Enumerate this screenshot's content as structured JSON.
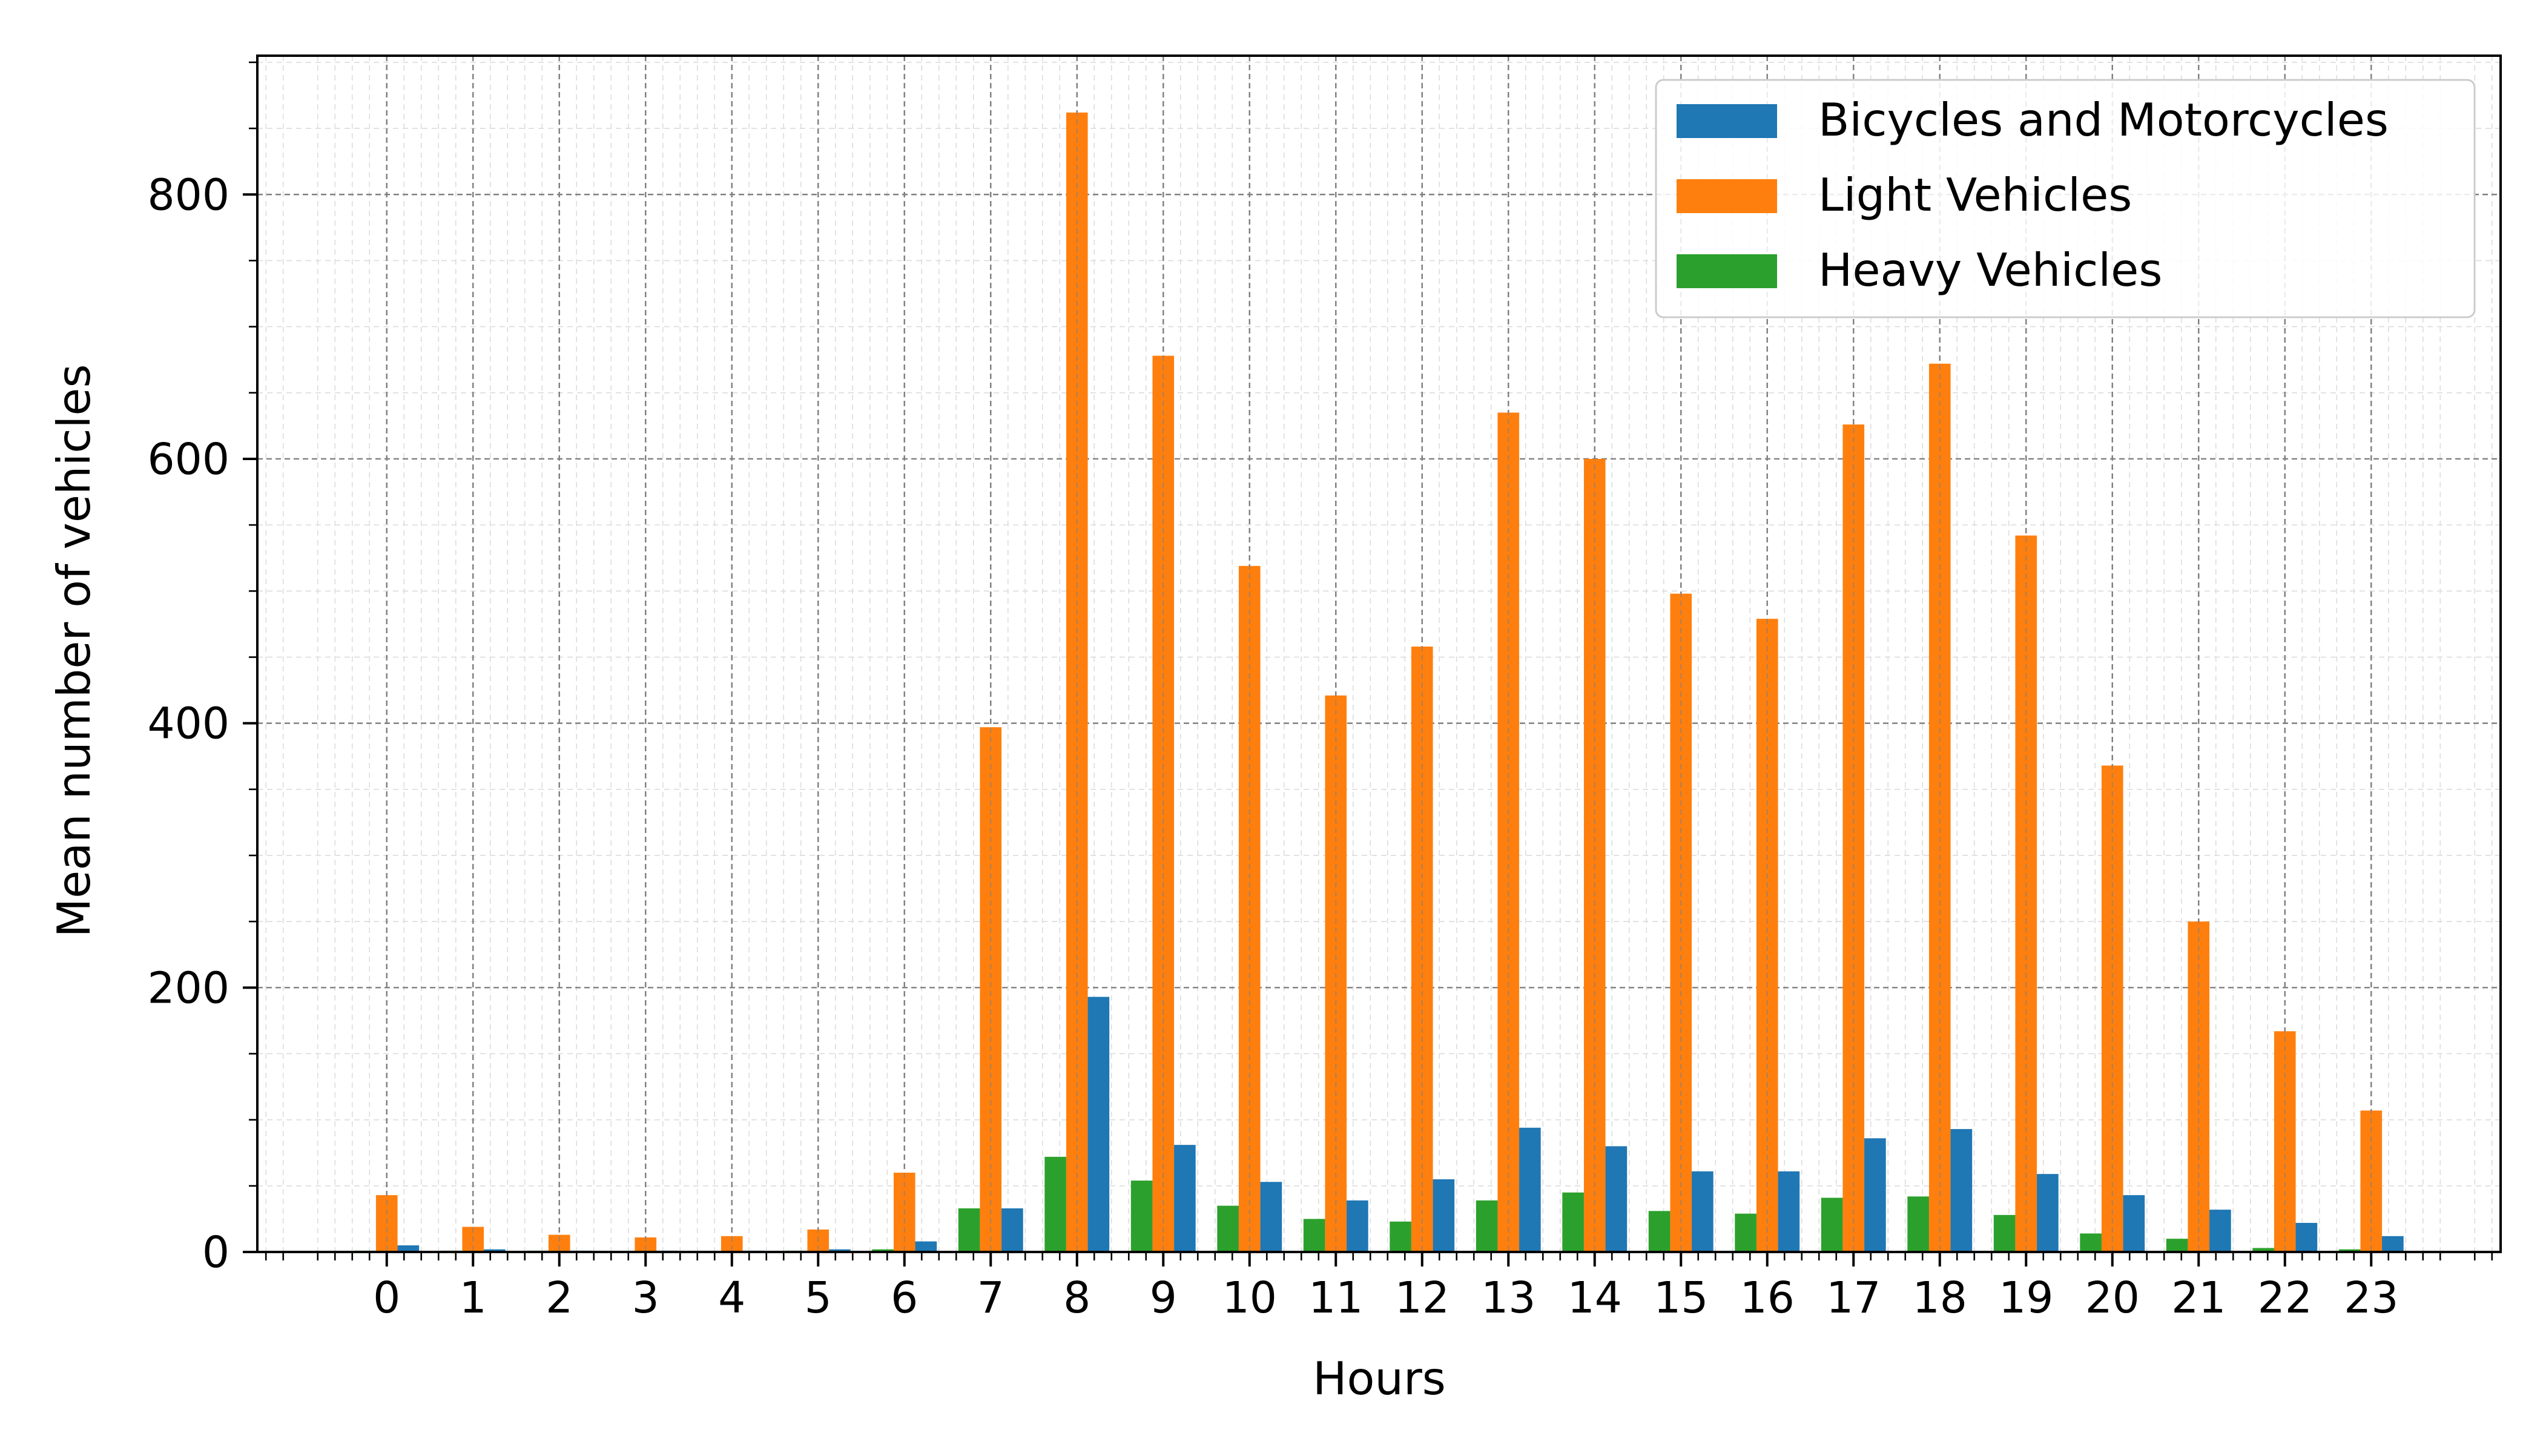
{
  "chart_data": {
    "type": "bar",
    "title": "",
    "xlabel": "Hours",
    "ylabel": "Mean number of vehicles",
    "categories": [
      "0",
      "1",
      "2",
      "3",
      "4",
      "5",
      "6",
      "7",
      "8",
      "9",
      "10",
      "11",
      "12",
      "13",
      "14",
      "15",
      "16",
      "17",
      "18",
      "19",
      "20",
      "21",
      "22",
      "23"
    ],
    "xlim": [
      -1.5,
      24.5
    ],
    "ylim": [
      0,
      905
    ],
    "yticks": [
      0,
      200,
      400,
      600,
      800
    ],
    "grid": true,
    "minor_grid": true,
    "legend_position": "top-right",
    "series": [
      {
        "name": "Heavy Vehicles",
        "color": "#2ca02c",
        "offset": -0.25,
        "values": [
          1,
          1,
          1,
          0,
          0,
          1,
          2,
          33,
          72,
          54,
          35,
          25,
          23,
          39,
          45,
          31,
          29,
          41,
          42,
          28,
          14,
          10,
          3,
          2
        ]
      },
      {
        "name": "Light Vehicles",
        "color": "#ff7f0e",
        "offset": 0,
        "values": [
          43,
          19,
          13,
          11,
          12,
          17,
          60,
          397,
          862,
          678,
          519,
          421,
          458,
          635,
          600,
          498,
          479,
          626,
          672,
          542,
          368,
          250,
          167,
          107
        ]
      },
      {
        "name": "Bicycles and Motorcycles",
        "color": "#1f77b4",
        "offset": 0.25,
        "values": [
          5,
          2,
          1,
          1,
          1,
          2,
          8,
          33,
          193,
          81,
          53,
          39,
          55,
          94,
          80,
          61,
          61,
          86,
          93,
          59,
          43,
          32,
          22,
          12
        ]
      }
    ],
    "legend_order": [
      "Bicycles and Motorcycles",
      "Light Vehicles",
      "Heavy Vehicles"
    ]
  }
}
